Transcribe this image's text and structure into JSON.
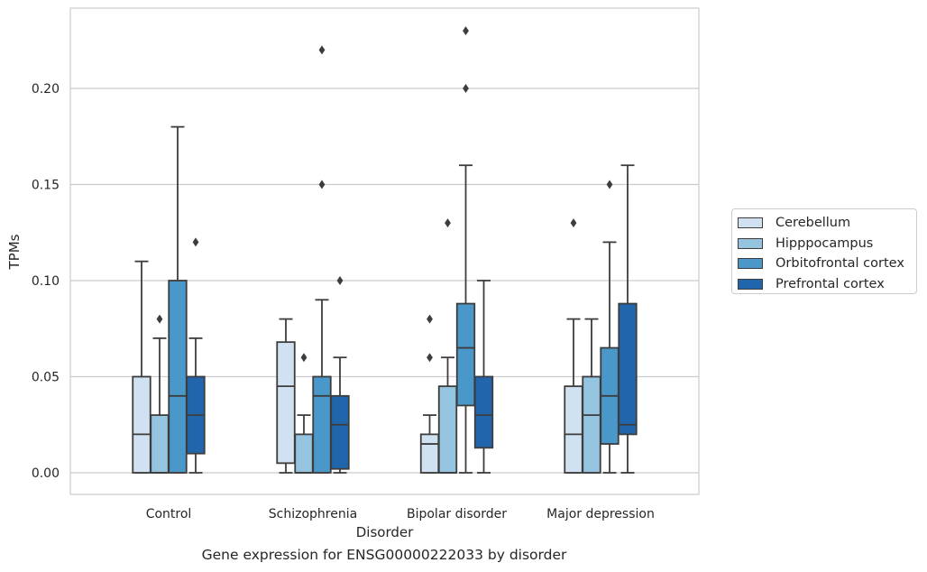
{
  "chart_data": {
    "type": "box",
    "xlabel": "Disorder",
    "ylabel": "TPMs",
    "caption": "Gene expression for ENSG00000222033 by disorder",
    "ylim": [
      -0.011,
      0.242
    ],
    "yticks": [
      "0.00",
      "0.05",
      "0.10",
      "0.15",
      "0.20"
    ],
    "grid": "horizontal",
    "legend_position": "right",
    "categories": [
      "Control",
      "Schizophrenia",
      "Bipolar disorder",
      "Major depression"
    ],
    "series": [
      {
        "name": "Cerebellum",
        "color": "#d0e1f2",
        "boxes": [
          {
            "low": 0.0,
            "q1": 0.0,
            "median": 0.02,
            "q3": 0.05,
            "high": 0.11,
            "outliers": []
          },
          {
            "low": 0.0,
            "q1": 0.005,
            "median": 0.045,
            "q3": 0.068,
            "high": 0.08,
            "outliers": []
          },
          {
            "low": 0.0,
            "q1": 0.0,
            "median": 0.015,
            "q3": 0.02,
            "high": 0.03,
            "outliers": [
              0.06,
              0.08
            ]
          },
          {
            "low": 0.0,
            "q1": 0.0,
            "median": 0.02,
            "q3": 0.045,
            "high": 0.08,
            "outliers": [
              0.13
            ]
          }
        ]
      },
      {
        "name": "Hipppocampus",
        "color": "#94c4df",
        "boxes": [
          {
            "low": 0.0,
            "q1": 0.0,
            "median": 0.0,
            "q3": 0.03,
            "high": 0.07,
            "outliers": [
              0.08
            ]
          },
          {
            "low": 0.0,
            "q1": 0.0,
            "median": 0.0,
            "q3": 0.02,
            "high": 0.03,
            "outliers": [
              0.06
            ]
          },
          {
            "low": 0.0,
            "q1": 0.0,
            "median": 0.0,
            "q3": 0.045,
            "high": 0.06,
            "outliers": [
              0.13
            ]
          },
          {
            "low": 0.0,
            "q1": 0.0,
            "median": 0.03,
            "q3": 0.05,
            "high": 0.08,
            "outliers": []
          }
        ]
      },
      {
        "name": "Orbitofrontal cortex",
        "color": "#4a98c9",
        "boxes": [
          {
            "low": 0.0,
            "q1": 0.0,
            "median": 0.04,
            "q3": 0.1,
            "high": 0.18,
            "outliers": []
          },
          {
            "low": 0.0,
            "q1": 0.0,
            "median": 0.04,
            "q3": 0.05,
            "high": 0.09,
            "outliers": [
              0.15,
              0.22
            ]
          },
          {
            "low": 0.0,
            "q1": 0.035,
            "median": 0.065,
            "q3": 0.088,
            "high": 0.16,
            "outliers": [
              0.2,
              0.23
            ]
          },
          {
            "low": 0.0,
            "q1": 0.015,
            "median": 0.04,
            "q3": 0.065,
            "high": 0.12,
            "outliers": [
              0.15
            ]
          }
        ]
      },
      {
        "name": "Prefrontal cortex",
        "color": "#2166ac",
        "boxes": [
          {
            "low": 0.0,
            "q1": 0.01,
            "median": 0.03,
            "q3": 0.05,
            "high": 0.07,
            "outliers": [
              0.12
            ]
          },
          {
            "low": 0.0,
            "q1": 0.002,
            "median": 0.025,
            "q3": 0.04,
            "high": 0.06,
            "outliers": [
              0.1
            ]
          },
          {
            "low": 0.0,
            "q1": 0.013,
            "median": 0.03,
            "q3": 0.05,
            "high": 0.1,
            "outliers": []
          },
          {
            "low": 0.0,
            "q1": 0.02,
            "median": 0.025,
            "q3": 0.088,
            "high": 0.16,
            "outliers": []
          }
        ]
      }
    ]
  }
}
